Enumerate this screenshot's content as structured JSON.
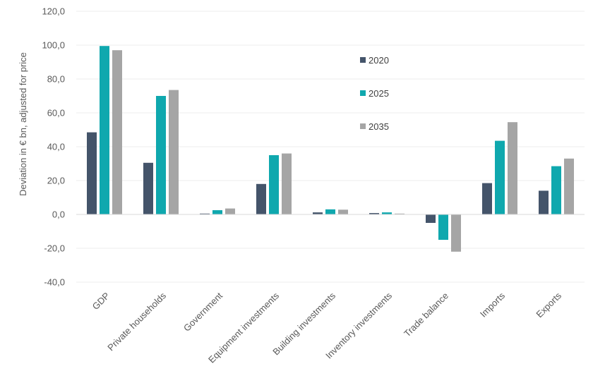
{
  "chart_data": {
    "type": "bar",
    "ylabel": "Deviation in € bn, adjusted for price",
    "ylim": [
      -40,
      120
    ],
    "yticks": [
      "120,0",
      "100,0",
      "80,0",
      "60,0",
      "40,0",
      "20,0",
      "0,0",
      "-20,0",
      "-40,0"
    ],
    "grid": true,
    "legend_position": "inside-top-center",
    "categories": [
      "GDP",
      "Private households",
      "Government",
      "Equipment investments",
      "Building investments",
      "Inventory investments",
      "Trade balance",
      "Imports",
      "Exports"
    ],
    "series": [
      {
        "name": "2020",
        "color": "#44546a",
        "values": [
          48.5,
          30.5,
          0.5,
          18.0,
          1.2,
          0.8,
          -5.0,
          18.5,
          14.0
        ]
      },
      {
        "name": "2025",
        "color": "#0fa8ae",
        "values": [
          99.5,
          70.0,
          2.5,
          35.0,
          3.0,
          1.2,
          -15.0,
          43.5,
          28.5
        ]
      },
      {
        "name": "2035",
        "color": "#a5a5a5",
        "values": [
          97.0,
          73.5,
          3.5,
          36.0,
          2.8,
          0.5,
          -22.0,
          54.5,
          33.0
        ]
      }
    ]
  }
}
